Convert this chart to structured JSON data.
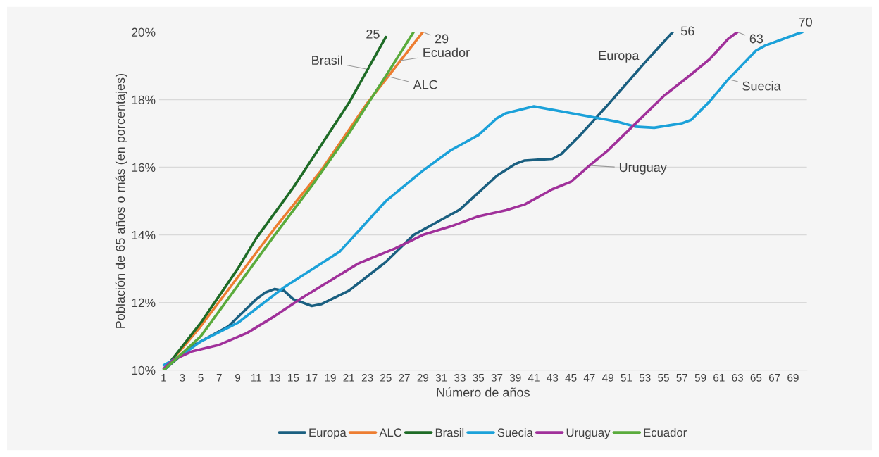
{
  "chart_data": {
    "type": "line",
    "xlabel": "Número de años",
    "ylabel": "Población de 65 años o más (en porcentajes)",
    "xlim": [
      0.5,
      70.5
    ],
    "xticks": [
      1,
      3,
      5,
      7,
      9,
      11,
      13,
      15,
      17,
      19,
      21,
      23,
      25,
      27,
      29,
      31,
      33,
      35,
      37,
      39,
      41,
      43,
      45,
      47,
      49,
      51,
      53,
      55,
      57,
      59,
      61,
      63,
      65,
      67,
      69
    ],
    "ylim": [
      10,
      20
    ],
    "yticks": [
      {
        "value": 10,
        "label": "10%"
      },
      {
        "value": 12,
        "label": "12%"
      },
      {
        "value": 14,
        "label": "14%"
      },
      {
        "value": 16,
        "label": "16%"
      },
      {
        "value": 18,
        "label": "18%"
      },
      {
        "value": 20,
        "label": "20%"
      }
    ],
    "grid": "y",
    "legend": "bottom",
    "marker": "none",
    "line_style": "solid",
    "series": [
      {
        "name": "Europa",
        "color": "#1a5f80",
        "x": [
          1,
          4,
          8,
          11,
          12,
          13,
          14,
          15,
          17,
          18,
          21,
          25,
          28,
          31,
          33,
          37,
          39,
          40,
          43,
          44,
          46,
          49,
          53,
          56
        ],
        "values": [
          10.0,
          10.7,
          11.3,
          12.1,
          12.3,
          12.4,
          12.35,
          12.1,
          11.9,
          11.95,
          12.35,
          13.2,
          14.0,
          14.45,
          14.75,
          15.75,
          16.1,
          16.2,
          16.25,
          16.4,
          16.95,
          17.85,
          19.1,
          20.0
        ]
      },
      {
        "name": "ALC",
        "color": "#ed7d31",
        "x": [
          1,
          5,
          13,
          18,
          23,
          29
        ],
        "values": [
          10.0,
          11.3,
          14.2,
          15.9,
          17.9,
          20.0
        ]
      },
      {
        "name": "Brasil",
        "color": "#1e6b26",
        "x": [
          1,
          5,
          9,
          11,
          15,
          21,
          25
        ],
        "values": [
          10.0,
          11.4,
          13.0,
          13.9,
          15.4,
          17.9,
          19.85
        ]
      },
      {
        "name": "Suecia",
        "color": "#1ba1d9",
        "x": [
          1,
          3,
          5,
          9,
          14,
          20,
          25,
          29,
          32,
          35,
          37,
          38,
          41,
          44,
          47,
          50,
          52,
          54,
          57,
          58,
          60,
          62,
          65,
          66,
          68,
          70
        ],
        "values": [
          10.15,
          10.45,
          10.85,
          11.4,
          12.45,
          13.5,
          15.0,
          15.9,
          16.5,
          16.95,
          17.45,
          17.6,
          17.8,
          17.65,
          17.5,
          17.35,
          17.2,
          17.17,
          17.3,
          17.4,
          17.95,
          18.6,
          19.45,
          19.6,
          19.8,
          20.0
        ]
      },
      {
        "name": "Uruguay",
        "color": "#a0309a",
        "x": [
          1,
          2,
          4,
          7,
          10,
          13,
          16,
          19,
          22,
          26,
          29,
          32,
          35,
          38,
          40,
          43,
          45,
          47,
          49,
          52,
          55,
          58,
          60,
          62,
          63
        ],
        "values": [
          10.05,
          10.3,
          10.55,
          10.75,
          11.1,
          11.6,
          12.15,
          12.65,
          13.15,
          13.6,
          14.0,
          14.25,
          14.55,
          14.73,
          14.9,
          15.35,
          15.57,
          16.05,
          16.5,
          17.3,
          18.1,
          18.75,
          19.2,
          19.8,
          20.0
        ]
      },
      {
        "name": "Ecuador",
        "color": "#5aab3c",
        "x": [
          1,
          5,
          9,
          13,
          17,
          21,
          25,
          28
        ],
        "values": [
          10.0,
          11.0,
          12.5,
          14.0,
          15.45,
          17.0,
          18.7,
          20.0
        ]
      }
    ],
    "annotations": [
      {
        "text": "25",
        "x": 25,
        "y": 19.85
      },
      {
        "text": "29",
        "x": 29,
        "y": 20.0
      },
      {
        "text": "Brasil",
        "x": 23,
        "y": 18.9
      },
      {
        "text": "Ecuador",
        "x": 26,
        "y": 19.13
      },
      {
        "text": "ALC",
        "x": 25,
        "y": 18.7
      },
      {
        "text": "Europa",
        "x": 53,
        "y": 19.1
      },
      {
        "text": "56",
        "x": 56,
        "y": 20.0
      },
      {
        "text": "63",
        "x": 63,
        "y": 20.0
      },
      {
        "text": "70",
        "x": 70,
        "y": 20.0
      },
      {
        "text": "Suecia",
        "x": 62,
        "y": 18.6
      },
      {
        "text": "Uruguay",
        "x": 47,
        "y": 16.05
      }
    ]
  }
}
